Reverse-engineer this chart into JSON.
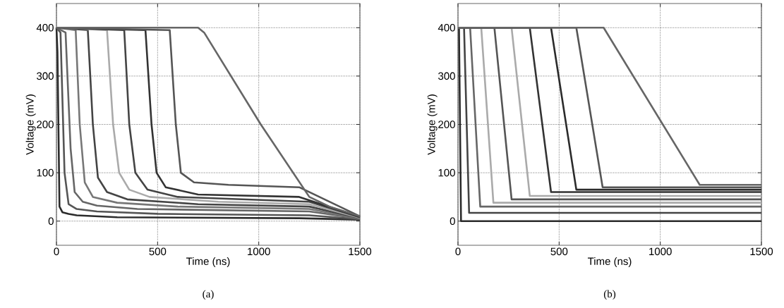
{
  "chart_data": [
    {
      "type": "line",
      "xlabel": "Time (ns)",
      "ylabel": "Voltage (mV)",
      "annotations": [
        "(a)"
      ],
      "xlim": [
        0,
        1500
      ],
      "ylim": [
        -50,
        450
      ],
      "xticks": [
        0,
        500,
        1000,
        1500
      ],
      "yticks": [
        0,
        100,
        200,
        300,
        400
      ],
      "grid": true,
      "line_style": "solid",
      "series": [
        {
          "color": "#2b2b2b",
          "x": [
            0,
            5,
            15,
            30,
            60,
            100,
            300,
            1200,
            1500
          ],
          "values": [
            400,
            350,
            30,
            18,
            15,
            12,
            8,
            6,
            3
          ]
        },
        {
          "color": "#555555",
          "x": [
            0,
            20,
            40,
            60,
            100,
            200,
            500,
            1250,
            1500
          ],
          "values": [
            400,
            390,
            100,
            35,
            25,
            20,
            15,
            12,
            4
          ]
        },
        {
          "color": "#666666",
          "x": [
            0,
            45,
            70,
            90,
            130,
            200,
            400,
            1250,
            1500
          ],
          "values": [
            400,
            390,
            150,
            60,
            40,
            32,
            25,
            20,
            5
          ]
        },
        {
          "color": "#777777",
          "x": [
            0,
            95,
            115,
            140,
            180,
            300,
            600,
            1250,
            1500
          ],
          "values": [
            400,
            395,
            200,
            80,
            50,
            38,
            30,
            25,
            5
          ]
        },
        {
          "color": "#444444",
          "x": [
            0,
            155,
            180,
            205,
            250,
            350,
            700,
            1250,
            1500
          ],
          "values": [
            400,
            395,
            200,
            90,
            60,
            45,
            35,
            30,
            6
          ]
        },
        {
          "color": "#aaaaaa",
          "x": [
            0,
            250,
            280,
            310,
            360,
            460,
            800,
            1250,
            1500
          ],
          "values": [
            400,
            395,
            200,
            100,
            65,
            50,
            40,
            35,
            7
          ]
        },
        {
          "color": "#444444",
          "x": [
            0,
            335,
            360,
            390,
            450,
            600,
            1250,
            1500
          ],
          "values": [
            400,
            395,
            200,
            100,
            65,
            50,
            40,
            8
          ]
        },
        {
          "color": "#333333",
          "x": [
            0,
            440,
            470,
            495,
            540,
            700,
            1200,
            1500
          ],
          "values": [
            400,
            395,
            200,
            100,
            70,
            55,
            50,
            9
          ]
        },
        {
          "color": "#555555",
          "x": [
            0,
            560,
            590,
            615,
            680,
            850,
            1200,
            1500
          ],
          "values": [
            400,
            395,
            200,
            100,
            80,
            75,
            70,
            10
          ]
        },
        {
          "color": "#666666",
          "x": [
            0,
            700,
            730,
            1010,
            1250,
            1350,
            1500
          ],
          "values": [
            400,
            400,
            390,
            200,
            50,
            30,
            10
          ]
        }
      ]
    },
    {
      "type": "line",
      "xlabel": "Time (ns)",
      "ylabel": "Voltage (mV)",
      "annotations": [
        "(b)"
      ],
      "xlim": [
        0,
        1500
      ],
      "ylim": [
        -50,
        450
      ],
      "xticks": [
        0,
        500,
        1000,
        1500
      ],
      "yticks": [
        0,
        100,
        200,
        300,
        400
      ],
      "grid": true,
      "line_style": "solid",
      "series": [
        {
          "color": "#2b2b2b",
          "x": [
            0,
            5,
            15,
            1500
          ],
          "values": [
            400,
            400,
            0,
            0
          ]
        },
        {
          "color": "#444444",
          "x": [
            0,
            30,
            55,
            1500
          ],
          "values": [
            400,
            400,
            17,
            17
          ]
        },
        {
          "color": "#666666",
          "x": [
            0,
            60,
            110,
            1500
          ],
          "values": [
            400,
            400,
            30,
            30
          ]
        },
        {
          "color": "#aaaaaa",
          "x": [
            0,
            115,
            175,
            1500
          ],
          "values": [
            400,
            400,
            38,
            38
          ]
        },
        {
          "color": "#555555",
          "x": [
            0,
            180,
            265,
            1500
          ],
          "values": [
            400,
            400,
            45,
            45
          ]
        },
        {
          "color": "#aaaaaa",
          "x": [
            0,
            265,
            355,
            1500
          ],
          "values": [
            400,
            400,
            52,
            52
          ]
        },
        {
          "color": "#333333",
          "x": [
            0,
            355,
            460,
            1500
          ],
          "values": [
            400,
            400,
            60,
            60
          ]
        },
        {
          "color": "#2b2b2b",
          "x": [
            0,
            460,
            585,
            1500
          ],
          "values": [
            400,
            400,
            65,
            65
          ]
        },
        {
          "color": "#555555",
          "x": [
            0,
            585,
            715,
            1500
          ],
          "values": [
            400,
            400,
            70,
            70
          ]
        },
        {
          "color": "#666666",
          "x": [
            0,
            720,
            1195,
            1500
          ],
          "values": [
            400,
            400,
            75,
            75
          ]
        }
      ]
    }
  ]
}
